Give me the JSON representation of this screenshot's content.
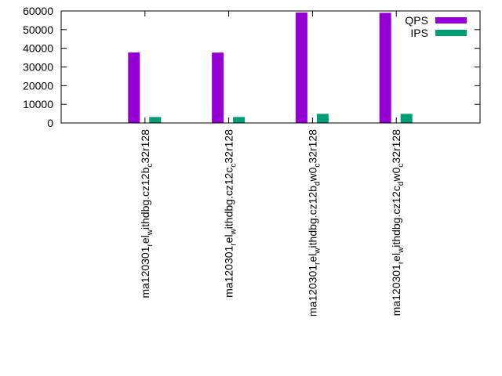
{
  "chart_data": {
    "type": "bar",
    "title": "",
    "xlabel": "",
    "ylabel": "",
    "ylim": [
      0,
      60000
    ],
    "yticks": [
      0,
      10000,
      20000,
      30000,
      40000,
      50000,
      60000
    ],
    "grid": false,
    "legend_position": "top-right",
    "categories": [
      {
        "prefix": "ma120301",
        "parts": [
          [
            "r",
            "el"
          ],
          [
            "w",
            "ithdbg.cz12b"
          ],
          [
            "c",
            "32r128"
          ]
        ]
      },
      {
        "prefix": "ma120301",
        "parts": [
          [
            "r",
            "el"
          ],
          [
            "w",
            "ithdbg.cz12c"
          ],
          [
            "c",
            "32r128"
          ]
        ]
      },
      {
        "prefix": "ma120301",
        "parts": [
          [
            "r",
            "el"
          ],
          [
            "w",
            "ithdbg.cz12b"
          ],
          [
            "d",
            "w0"
          ],
          [
            "c",
            "32r128"
          ]
        ]
      },
      {
        "prefix": "ma120301",
        "parts": [
          [
            "r",
            "el"
          ],
          [
            "w",
            "ithdbg.cz12c"
          ],
          [
            "d",
            "w0"
          ],
          [
            "c",
            "32r128"
          ]
        ]
      }
    ],
    "series": [
      {
        "name": "QPS",
        "color": "#9400d3",
        "values": [
          37800,
          37700,
          59200,
          59000
        ]
      },
      {
        "name": "IPS",
        "color": "#009e73",
        "values": [
          3200,
          3200,
          4900,
          4900
        ]
      }
    ]
  }
}
